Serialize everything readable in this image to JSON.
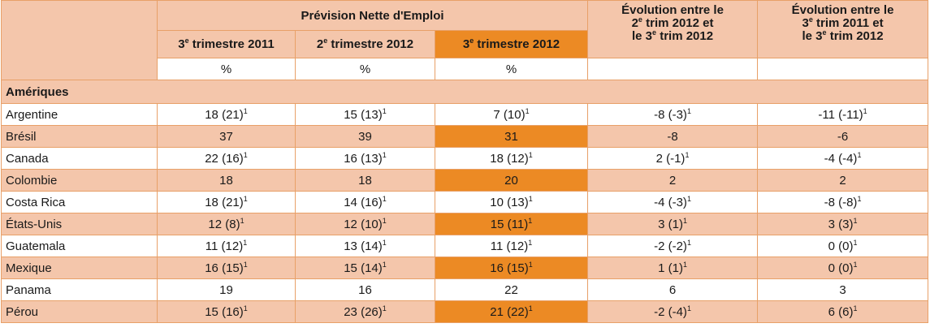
{
  "header": {
    "pne_title": "Prévision Nette d'Emploi",
    "evolution_a": [
      "Évolution entre le",
      "2e trim 2012 et",
      "le 3e trim 2012"
    ],
    "evolution_b": [
      "Évolution entre le",
      "3e trim 2011 et",
      "le 3e trim 2012"
    ],
    "columns": [
      {
        "ord": "3",
        "suffix": "e",
        "rest": " trimestre 2011"
      },
      {
        "ord": "2",
        "suffix": "e",
        "rest": " trimestre 2012"
      },
      {
        "ord": "3",
        "suffix": "e",
        "rest": " trimestre 2012"
      }
    ],
    "unit": "%"
  },
  "region": "Amériques",
  "colors": {
    "peach": "#f4c6ab",
    "orange": "#ec8a24",
    "border": "#e8a068"
  },
  "rows": [
    {
      "country": "Argentine",
      "cells": [
        "18 (21)",
        "15 (13)",
        "7 (10)",
        "-8 (-3)",
        "-11 (-11)"
      ],
      "sup": [
        true,
        true,
        true,
        true,
        true
      ]
    },
    {
      "country": "Brésil",
      "cells": [
        "37",
        "39",
        "31",
        "-8",
        "-6"
      ],
      "sup": [
        false,
        false,
        false,
        false,
        false
      ]
    },
    {
      "country": "Canada",
      "cells": [
        "22 (16)",
        "16 (13)",
        "18 (12)",
        "2 (-1)",
        "-4 (-4)"
      ],
      "sup": [
        true,
        true,
        true,
        true,
        true
      ]
    },
    {
      "country": "Colombie",
      "cells": [
        "18",
        "18",
        "20",
        "2",
        "2"
      ],
      "sup": [
        false,
        false,
        false,
        false,
        false
      ]
    },
    {
      "country": "Costa Rica",
      "cells": [
        "18 (21)",
        "14 (16)",
        "10 (13)",
        "-4 (-3)",
        "-8 (-8)"
      ],
      "sup": [
        true,
        true,
        true,
        true,
        true
      ]
    },
    {
      "country": "États-Unis",
      "cells": [
        "12 (8)",
        "12 (10)",
        "15 (11)",
        "3 (1)",
        "3 (3)"
      ],
      "sup": [
        true,
        true,
        true,
        true,
        true
      ]
    },
    {
      "country": "Guatemala",
      "cells": [
        "11 (12)",
        "13 (14)",
        "11 (12)",
        "-2 (-2)",
        "0 (0)"
      ],
      "sup": [
        true,
        true,
        true,
        true,
        true
      ]
    },
    {
      "country": "Mexique",
      "cells": [
        "16 (15)",
        "15 (14)",
        "16 (15)",
        "1 (1)",
        "0 (0)"
      ],
      "sup": [
        true,
        true,
        true,
        true,
        true
      ]
    },
    {
      "country": "Panama",
      "cells": [
        "19",
        "16",
        "22",
        "6",
        "3"
      ],
      "sup": [
        false,
        false,
        false,
        false,
        false
      ]
    },
    {
      "country": "Pérou",
      "cells": [
        "15 (16)",
        "23 (26)",
        "21 (22)",
        "-2 (-4)",
        "6 (6)"
      ],
      "sup": [
        true,
        true,
        true,
        true,
        true
      ]
    }
  ],
  "footnote_marker": "1"
}
